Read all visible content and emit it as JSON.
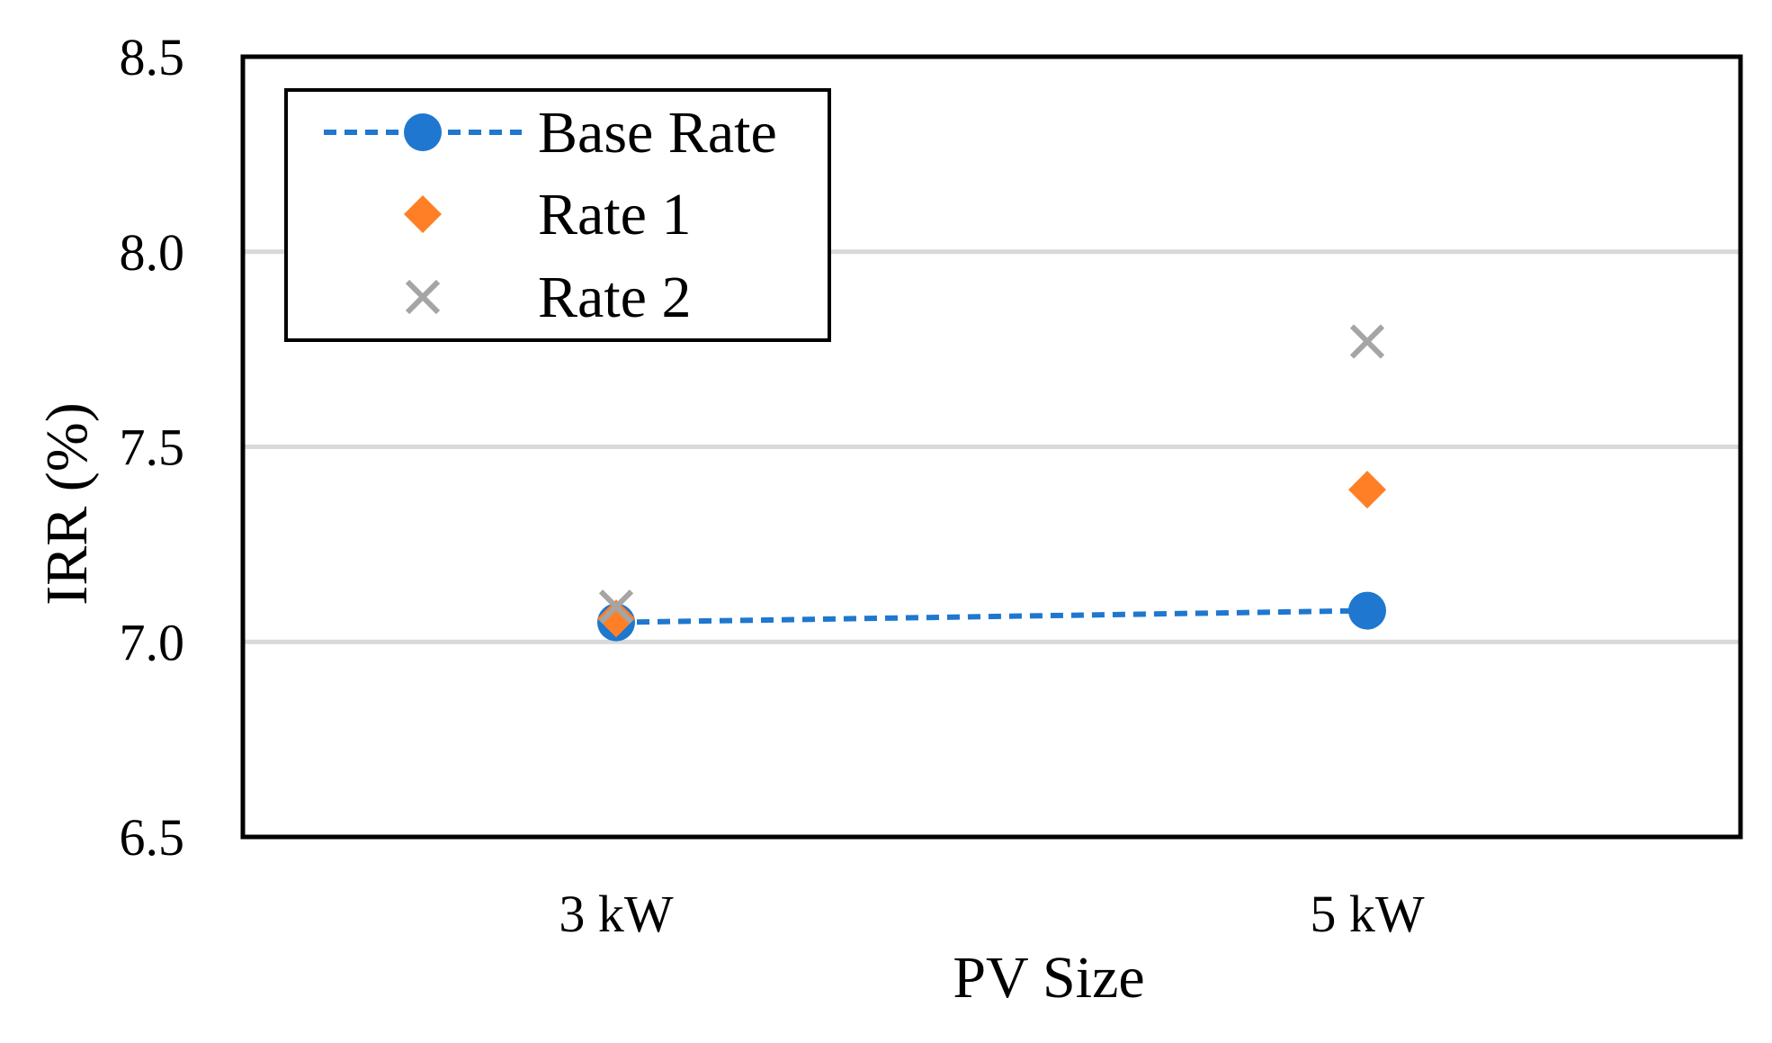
{
  "chart_data": {
    "type": "scatter",
    "title": "",
    "xlabel": "PV Size",
    "ylabel": "IRR (%)",
    "categories": [
      "3 kW",
      "5 kW"
    ],
    "ylim": [
      6.5,
      8.5
    ],
    "yticks": [
      "6.5",
      "7.0",
      "7.5",
      "8.0",
      "8.5"
    ],
    "yticks_values": [
      6.5,
      7.0,
      7.5,
      8.0,
      8.5
    ],
    "grid": "horizontal",
    "legend_position": "top-left",
    "series": [
      {
        "name": "Base Rate",
        "values": [
          7.05,
          7.08
        ],
        "color": "#1f77cf",
        "marker": "circle",
        "line": "dashed"
      },
      {
        "name": "Rate 1",
        "values": [
          7.06,
          7.39
        ],
        "color": "#ff7f27",
        "marker": "diamond",
        "line": "none"
      },
      {
        "name": "Rate 2",
        "values": [
          7.09,
          7.77
        ],
        "color": "#a5a5a5",
        "marker": "x",
        "line": "none"
      }
    ]
  }
}
